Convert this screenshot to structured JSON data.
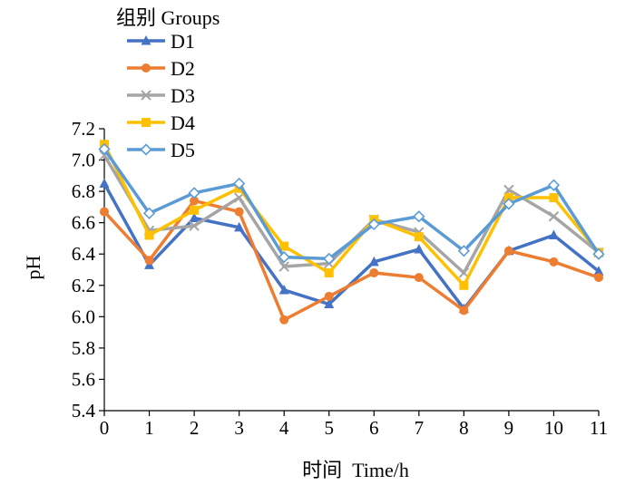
{
  "chart_data": {
    "type": "line",
    "title": "",
    "xlabel": "时间  Time/h",
    "ylabel": "pH",
    "legend_title": "组别 Groups",
    "legend_position": "top-left",
    "grid": false,
    "x": [
      0,
      1,
      2,
      3,
      4,
      5,
      6,
      7,
      8,
      9,
      10,
      11
    ],
    "xlim": [
      0,
      11
    ],
    "ylim": [
      5.4,
      7.2
    ],
    "y_ticks": [
      "5.4",
      "5.6",
      "5.8",
      "6.0",
      "6.2",
      "6.4",
      "6.6",
      "6.8",
      "7.0",
      "7.2"
    ],
    "x_ticks": [
      "0",
      "1",
      "2",
      "3",
      "4",
      "5",
      "6",
      "7",
      "8",
      "9",
      "10",
      "11"
    ],
    "series": [
      {
        "name": "D1",
        "color": "#4472C4",
        "marker": "triangle",
        "values": [
          6.85,
          6.33,
          6.63,
          6.57,
          6.17,
          6.08,
          6.35,
          6.43,
          6.05,
          6.42,
          6.52,
          6.29
        ]
      },
      {
        "name": "D2",
        "color": "#ED7D31",
        "marker": "circle",
        "values": [
          6.67,
          6.36,
          6.74,
          6.67,
          5.98,
          6.13,
          6.28,
          6.25,
          6.04,
          6.42,
          6.35,
          6.25
        ]
      },
      {
        "name": "D3",
        "color": "#A5A5A5",
        "marker": "cross",
        "values": [
          7.03,
          6.55,
          6.58,
          6.76,
          6.32,
          6.34,
          6.62,
          6.54,
          6.28,
          6.81,
          6.64,
          6.41
        ]
      },
      {
        "name": "D4",
        "color": "#FFC000",
        "marker": "square",
        "values": [
          7.1,
          6.52,
          6.68,
          6.82,
          6.45,
          6.28,
          6.62,
          6.51,
          6.2,
          6.76,
          6.76,
          6.41
        ]
      },
      {
        "name": "D5",
        "color": "#5B9BD5",
        "marker": "diamond",
        "values": [
          7.07,
          6.66,
          6.79,
          6.85,
          6.38,
          6.37,
          6.59,
          6.64,
          6.42,
          6.72,
          6.84,
          6.4
        ]
      }
    ]
  }
}
